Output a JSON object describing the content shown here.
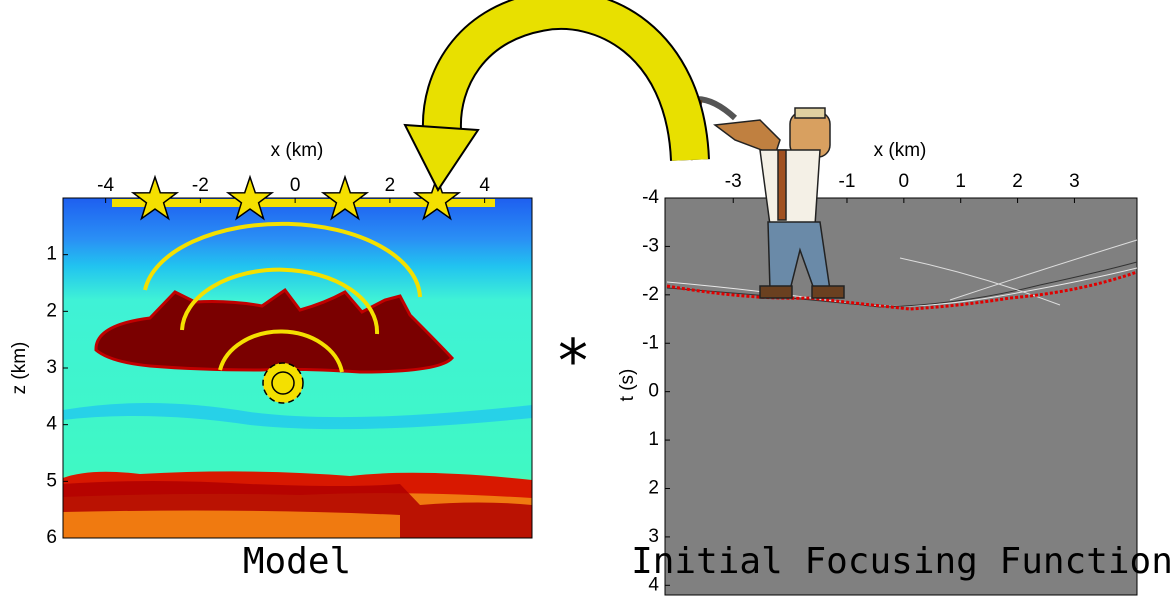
{
  "left_panel": {
    "x_label": "x (km)",
    "y_label": "z (km)",
    "xlim": [
      -4.9,
      5
    ],
    "ylim": [
      0,
      6
    ],
    "xticks": [
      -4,
      -2,
      0,
      2,
      4
    ],
    "yticks": [
      1,
      2,
      3,
      4,
      5,
      6
    ],
    "caption": "Model"
  },
  "operator": "*",
  "right_panel": {
    "x_label": "x (km)",
    "y_label": "t (s)",
    "xlim": [
      -4.2,
      4.1
    ],
    "ylim": [
      -4,
      4.2
    ],
    "xticks": [
      -3,
      -1,
      0,
      1,
      2,
      3
    ],
    "yticks": [
      -4,
      -3,
      -2,
      -1,
      0,
      1,
      2,
      3,
      4
    ],
    "caption": "Initial Focusing Function"
  }
}
